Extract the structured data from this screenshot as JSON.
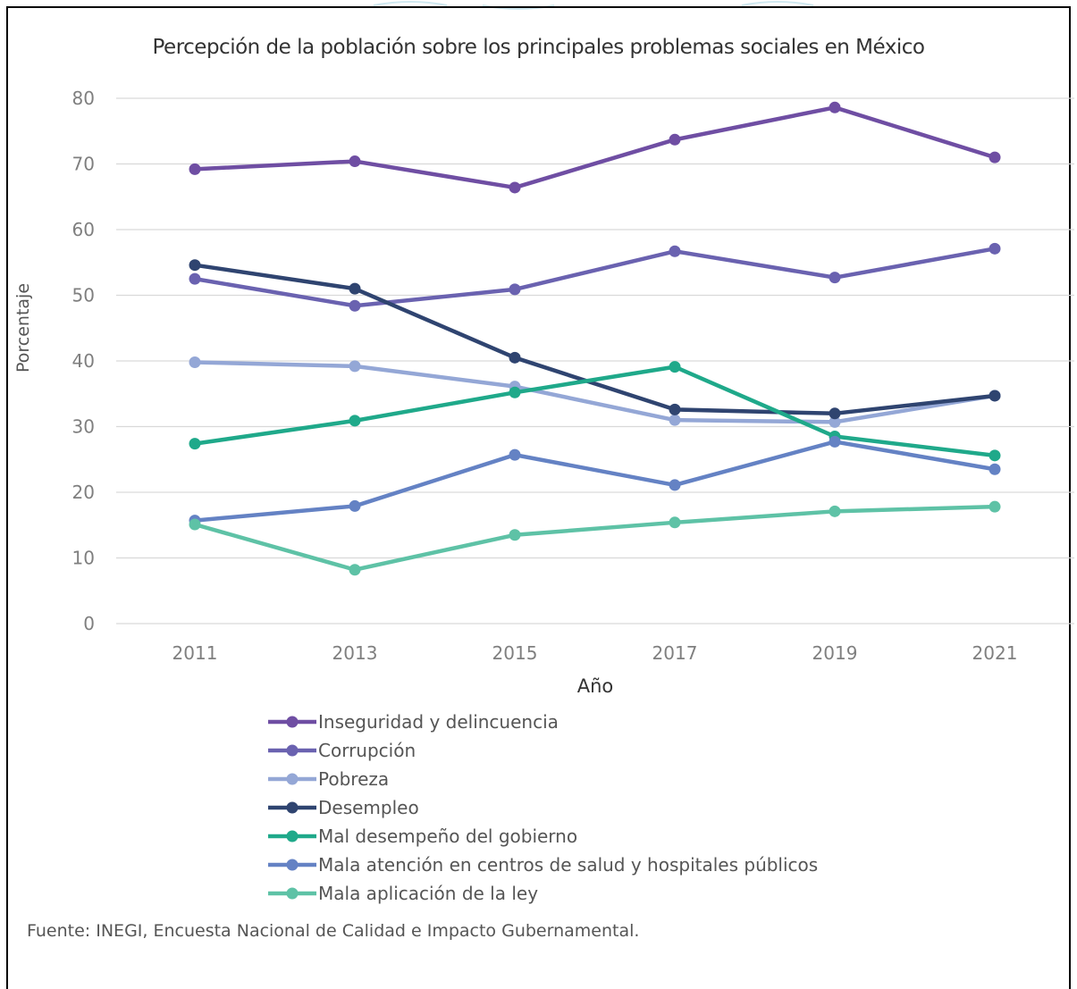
{
  "chart_data": {
    "type": "line",
    "title": "Percepción de la población sobre los principales problemas sociales en México",
    "xlabel": "Año",
    "ylabel": "Porcentaje",
    "categories": [
      "2011",
      "2013",
      "2015",
      "2017",
      "2019",
      "2021"
    ],
    "ylim": [
      0,
      80
    ],
    "yticks": [
      "0",
      "10",
      "20",
      "30",
      "40",
      "50",
      "60",
      "70",
      "80"
    ],
    "grid": true,
    "legend_position": "bottom",
    "series": [
      {
        "name": "Inseguridad y delincuencia",
        "color": "#6f4ea3",
        "values": [
          69.2,
          70.4,
          66.4,
          73.7,
          78.6,
          71.0
        ]
      },
      {
        "name": "Corrupción",
        "color": "#6a62b0",
        "values": [
          52.5,
          48.4,
          50.9,
          56.7,
          52.7,
          57.1
        ]
      },
      {
        "name": "Pobreza",
        "color": "#94a7d6",
        "values": [
          39.8,
          39.2,
          36.1,
          31.0,
          30.7,
          34.7
        ]
      },
      {
        "name": "Desempleo",
        "color": "#2f4470",
        "values": [
          54.6,
          51.0,
          40.5,
          32.6,
          32.0,
          34.7
        ]
      },
      {
        "name": "Mal desempeño del gobierno",
        "color": "#1fa98a",
        "values": [
          27.4,
          30.9,
          35.2,
          39.1,
          28.5,
          25.6
        ]
      },
      {
        "name": "Mala atención en centros de salud y hospitales públicos",
        "color": "#6482c4",
        "values": [
          15.7,
          17.9,
          25.7,
          21.1,
          27.7,
          23.5
        ]
      },
      {
        "name": "Mala aplicación de la ley",
        "color": "#5ec2a6",
        "values": [
          15.1,
          8.2,
          13.5,
          15.4,
          17.1,
          17.8
        ]
      }
    ]
  },
  "source": "Fuente: INEGI, Encuesta Nacional de Calidad e Impacto Gubernamental."
}
